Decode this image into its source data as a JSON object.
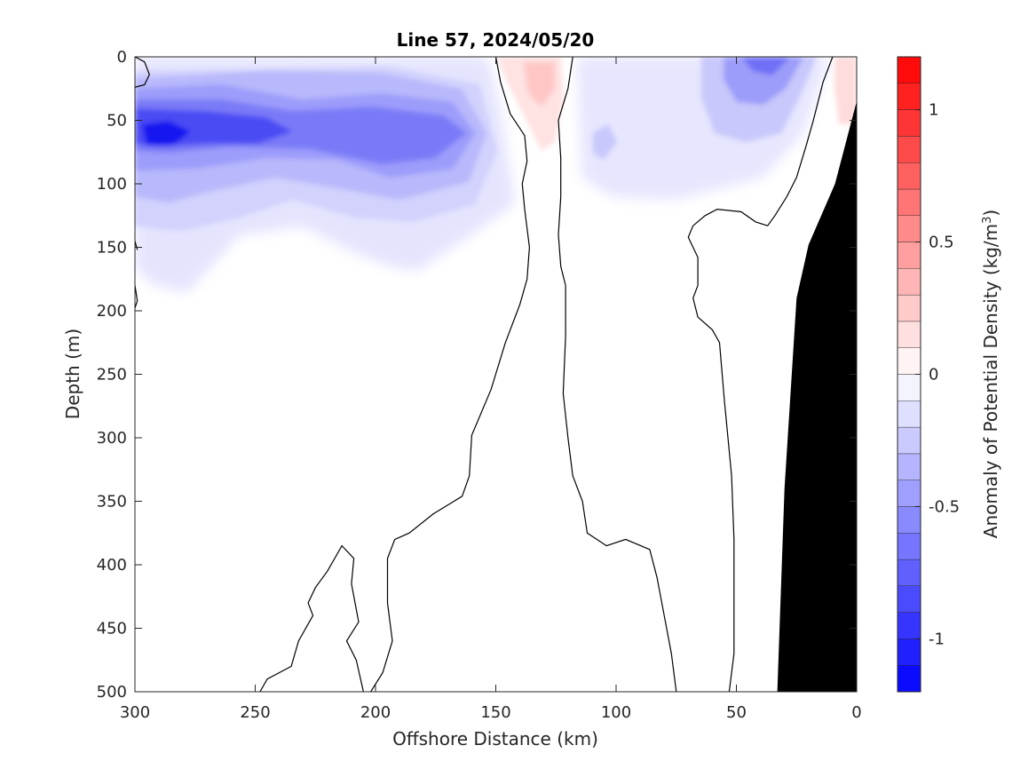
{
  "chart_data": {
    "type": "heatmap",
    "title": "Line 57, 2024/05/20",
    "xlabel": "Offshore Distance (km)",
    "ylabel": "Depth (m)",
    "xlim": [
      300,
      0
    ],
    "ylim": [
      500,
      0
    ],
    "x_direction": "reversed",
    "y_direction": "reversed",
    "x_ticks": [
      "300",
      "250",
      "200",
      "150",
      "100",
      "50",
      "0"
    ],
    "y_ticks": [
      "0",
      "50",
      "100",
      "150",
      "200",
      "250",
      "300",
      "350",
      "400",
      "450",
      "500"
    ],
    "colorbar": {
      "label": "Anomaly of Potential Density (kg/m",
      "label_sup": "3",
      "label_end": ")",
      "range": [
        -1.2,
        1.2
      ],
      "step": 0.1,
      "ticks": [
        "1",
        "0.5",
        "0",
        "-0.5",
        "-1"
      ],
      "negative_color": "#0000ff",
      "positive_color": "#ff0000",
      "zero_color": "#ffffff"
    },
    "anomaly_features": [
      {
        "name": "negative core",
        "x_km": 290,
        "depth_m": 60,
        "value": -1.0
      },
      {
        "name": "negative secondary",
        "x_km": 195,
        "depth_m": 68,
        "value": -0.7
      },
      {
        "name": "negative near-surface",
        "x_km": 40,
        "depth_m": 5,
        "value": -0.6
      },
      {
        "name": "positive surface",
        "x_km": 135,
        "depth_m": 30,
        "value": 0.2
      },
      {
        "name": "positive nearshore",
        "x_km": 5,
        "depth_m": 20,
        "value": 0.2
      }
    ],
    "bottom_topography": [
      {
        "x": 0,
        "depth": 35
      },
      {
        "x": 9,
        "depth": 100
      },
      {
        "x": 20,
        "depth": 148
      },
      {
        "x": 25,
        "depth": 190
      },
      {
        "x": 30,
        "depth": 340
      },
      {
        "x": 33,
        "depth": 500
      }
    ],
    "zero_contours": [
      [
        [
          300,
          0
        ],
        [
          296,
          4
        ],
        [
          294,
          14
        ],
        [
          296,
          22
        ],
        [
          300,
          24
        ]
      ],
      [
        [
          300,
          145
        ],
        [
          299,
          152
        ]
      ],
      [
        [
          300,
          180
        ],
        [
          299,
          192
        ],
        [
          300,
          198
        ]
      ],
      [
        [
          150,
          0
        ],
        [
          148,
          20
        ],
        [
          144,
          45
        ],
        [
          138,
          62
        ],
        [
          137,
          82
        ],
        [
          139,
          100
        ],
        [
          138,
          120
        ],
        [
          136,
          150
        ],
        [
          137,
          175
        ],
        [
          140,
          195
        ],
        [
          146,
          225
        ],
        [
          152,
          262
        ],
        [
          160,
          298
        ],
        [
          161,
          330
        ],
        [
          164,
          346
        ],
        [
          176,
          360
        ],
        [
          186,
          375
        ],
        [
          192,
          380
        ],
        [
          195,
          395
        ],
        [
          195,
          430
        ],
        [
          193,
          460
        ],
        [
          197,
          485
        ],
        [
          202,
          500
        ]
      ],
      [
        [
          205,
          500
        ],
        [
          208,
          475
        ],
        [
          212,
          460
        ],
        [
          207,
          445
        ],
        [
          210,
          415
        ],
        [
          209,
          395
        ],
        [
          214,
          385
        ],
        [
          220,
          405
        ],
        [
          225,
          418
        ],
        [
          228,
          430
        ],
        [
          226,
          440
        ],
        [
          232,
          460
        ],
        [
          235,
          480
        ],
        [
          245,
          490
        ],
        [
          248,
          500
        ]
      ],
      [
        [
          118,
          0
        ],
        [
          120,
          25
        ],
        [
          124,
          50
        ],
        [
          123,
          80
        ],
        [
          123,
          110
        ],
        [
          124,
          140
        ],
        [
          123,
          165
        ],
        [
          121,
          180
        ],
        [
          121,
          220
        ],
        [
          122,
          265
        ],
        [
          120,
          300
        ],
        [
          118,
          330
        ],
        [
          114,
          350
        ],
        [
          112,
          375
        ],
        [
          104,
          385
        ],
        [
          96,
          380
        ],
        [
          86,
          388
        ],
        [
          83,
          410
        ],
        [
          80,
          440
        ],
        [
          77,
          470
        ],
        [
          75,
          500
        ]
      ],
      [
        [
          10,
          0
        ],
        [
          14,
          20
        ],
        [
          18,
          50
        ],
        [
          21,
          70
        ],
        [
          25,
          95
        ],
        [
          29,
          110
        ],
        [
          34,
          125
        ],
        [
          37,
          133
        ],
        [
          42,
          130
        ],
        [
          48,
          122
        ],
        [
          58,
          120
        ],
        [
          63,
          125
        ],
        [
          68,
          133
        ],
        [
          70,
          142
        ],
        [
          66,
          158
        ],
        [
          66,
          180
        ],
        [
          68,
          190
        ],
        [
          66,
          205
        ],
        [
          60,
          215
        ],
        [
          57,
          225
        ],
        [
          55,
          270
        ],
        [
          52,
          330
        ],
        [
          51,
          380
        ],
        [
          51,
          470
        ],
        [
          52,
          485
        ],
        [
          53,
          500
        ]
      ]
    ]
  }
}
